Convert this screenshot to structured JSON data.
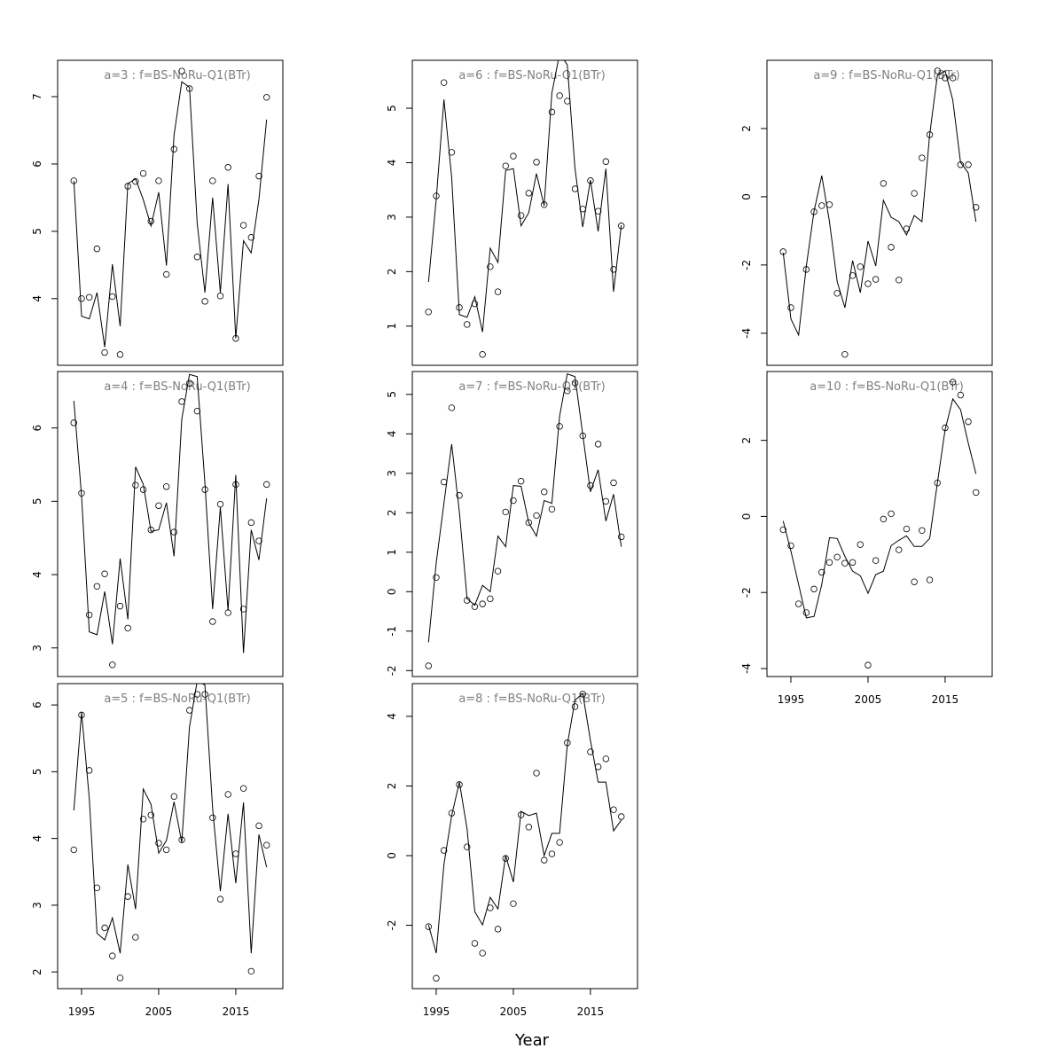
{
  "chart_data": {
    "xlabel": "Year",
    "x": [
      1994,
      1995,
      1996,
      1997,
      1998,
      1999,
      2000,
      2001,
      2002,
      2003,
      2004,
      2005,
      2006,
      2007,
      2008,
      2009,
      2010,
      2011,
      2012,
      2013,
      2014,
      2015,
      2016,
      2017,
      2018,
      2019
    ],
    "xlim": [
      1991.9,
      2021.1
    ],
    "xticks": [
      1995,
      2005,
      2015
    ],
    "panels": [
      {
        "type": "line",
        "title": "a=3  :  f=BS-NoRu-Q1(BTr)",
        "ylim": [
          3.01,
          7.54
        ],
        "yticks": [
          4,
          5,
          6,
          7
        ],
        "points": [
          5.75,
          4.0,
          4.02,
          4.74,
          3.2,
          4.03,
          3.17,
          5.67,
          5.74,
          5.86,
          5.15,
          5.75,
          4.36,
          6.22,
          7.38,
          7.12,
          4.62,
          3.96,
          5.75,
          4.04,
          5.95,
          3.41,
          5.09,
          4.91,
          5.82,
          6.99
        ],
        "line": [
          5.75,
          3.74,
          3.7,
          4.09,
          3.28,
          4.51,
          3.59,
          5.71,
          5.78,
          5.47,
          5.08,
          5.58,
          4.49,
          6.43,
          7.22,
          7.14,
          5.12,
          4.09,
          5.5,
          4.09,
          5.7,
          3.41,
          4.86,
          4.68,
          5.47,
          6.66
        ]
      },
      {
        "type": "line",
        "title": "a=4  :  f=BS-NoRu-Q1(BTr)",
        "ylim": [
          2.61,
          6.77
        ],
        "yticks": [
          3,
          4,
          5,
          6
        ],
        "points": [
          6.07,
          5.11,
          3.45,
          3.84,
          4.01,
          2.77,
          3.57,
          3.27,
          5.22,
          5.16,
          4.61,
          4.94,
          5.2,
          4.58,
          6.36,
          6.61,
          6.23,
          5.16,
          3.36,
          4.96,
          3.48,
          5.23,
          3.53,
          4.71,
          4.46,
          5.23
        ],
        "line": [
          6.37,
          5.07,
          3.22,
          3.18,
          3.77,
          3.05,
          4.22,
          3.39,
          5.47,
          5.23,
          4.59,
          4.61,
          4.98,
          4.25,
          6.12,
          6.73,
          6.7,
          5.25,
          3.53,
          4.92,
          3.51,
          5.36,
          2.93,
          4.61,
          4.2,
          5.04
        ]
      },
      {
        "type": "line",
        "title": "a=5  :  f=BS-NoRu-Q1(BTr)",
        "ylim": [
          1.75,
          6.32
        ],
        "yticks": [
          2,
          3,
          4,
          5,
          6
        ],
        "xaxis": true,
        "points": [
          3.83,
          5.85,
          5.02,
          3.26,
          2.66,
          2.24,
          1.91,
          3.13,
          2.52,
          4.29,
          4.35,
          3.93,
          3.83,
          4.63,
          3.98,
          5.92,
          6.16,
          6.16,
          4.31,
          3.09,
          4.66,
          3.77,
          4.75,
          2.01,
          4.19,
          3.9
        ],
        "line": [
          4.42,
          5.89,
          4.6,
          2.58,
          2.48,
          2.81,
          2.28,
          3.61,
          2.94,
          4.74,
          4.51,
          3.78,
          3.97,
          4.55,
          3.94,
          5.67,
          6.36,
          6.3,
          4.45,
          3.21,
          4.37,
          3.33,
          4.54,
          2.28,
          4.06,
          3.57
        ]
      },
      {
        "type": "line",
        "title": "a=6  :  f=BS-NoRu-Q1(BTr)",
        "ylim": [
          0.28,
          5.88
        ],
        "yticks": [
          1,
          2,
          3,
          4,
          5
        ],
        "points": [
          1.26,
          3.39,
          5.47,
          4.19,
          1.34,
          1.03,
          1.41,
          0.48,
          2.09,
          1.63,
          3.94,
          4.12,
          3.03,
          3.44,
          4.01,
          3.23,
          4.93,
          5.23,
          5.13,
          3.52,
          3.15,
          3.67,
          3.11,
          4.02,
          2.04,
          2.84
        ],
        "line": [
          1.81,
          3.33,
          5.16,
          3.73,
          1.21,
          1.16,
          1.54,
          0.89,
          2.43,
          2.17,
          3.86,
          3.89,
          2.84,
          3.08,
          3.8,
          3.21,
          5.28,
          6.0,
          5.8,
          3.89,
          2.82,
          3.68,
          2.74,
          3.89,
          1.63,
          2.85
        ]
      },
      {
        "type": "line",
        "title": "a=7  :  f=BS-NoRu-Q1(BTr)",
        "ylim": [
          -2.15,
          5.58
        ],
        "yticks": [
          -2,
          -1,
          0,
          1,
          2,
          3,
          4,
          5
        ],
        "points": [
          -1.88,
          0.36,
          2.78,
          4.66,
          2.44,
          -0.22,
          -0.38,
          -0.31,
          -0.18,
          0.52,
          2.02,
          2.31,
          2.8,
          1.75,
          1.93,
          2.53,
          2.09,
          4.19,
          5.09,
          5.29,
          3.95,
          2.69,
          3.74,
          2.29,
          2.76,
          1.39
        ],
        "line": [
          -1.28,
          0.74,
          2.24,
          3.74,
          2.02,
          -0.18,
          -0.34,
          0.16,
          0,
          1.41,
          1.14,
          2.69,
          2.67,
          1.75,
          1.41,
          2.31,
          2.24,
          4.44,
          5.52,
          5.45,
          3.99,
          2.53,
          3.09,
          1.79,
          2.47,
          1.14
        ]
      },
      {
        "type": "line",
        "title": "a=8  :  f=BS-NoRu-Q1(BTr)",
        "ylim": [
          -3.82,
          4.94
        ],
        "yticks": [
          -2,
          0,
          2,
          4
        ],
        "xaxis": true,
        "points": [
          -2.04,
          -3.52,
          0.15,
          1.22,
          2.04,
          0.25,
          -2.52,
          -2.8,
          -1.5,
          -2.11,
          -0.08,
          -1.38,
          1.17,
          0.82,
          2.37,
          -0.13,
          0.05,
          0.38,
          3.24,
          4.28,
          4.64,
          2.98,
          2.55,
          2.78,
          1.32,
          1.12
        ],
        "line": [
          -1.99,
          -2.8,
          -0.25,
          1.15,
          2.11,
          0.76,
          -1.61,
          -1.99,
          -1.2,
          -1.53,
          0,
          -0.76,
          1.27,
          1.15,
          1.22,
          0,
          0.64,
          0.64,
          3.18,
          4.46,
          4.66,
          3.31,
          2.11,
          2.11,
          0.71,
          1.02
        ]
      },
      {
        "type": "line",
        "title": "a=9  :  f=BS-NoRu-Q1(BTr)",
        "ylim": [
          -4.94,
          4.0
        ],
        "yticks": [
          -4,
          -2,
          0,
          2
        ],
        "points": [
          -1.61,
          -3.25,
          null,
          -2.13,
          -0.44,
          -0.26,
          -0.23,
          -2.83,
          -4.62,
          -2.31,
          -2.05,
          -2.55,
          -2.42,
          0.39,
          -1.48,
          -2.44,
          -0.94,
          0.1,
          1.14,
          1.82,
          3.69,
          3.48,
          3.48,
          0.94,
          0.94,
          -0.31
        ],
        "line": [
          -1.64,
          -3.58,
          -4.05,
          -2.03,
          -0.42,
          0.62,
          -0.73,
          -2.49,
          -3.25,
          -1.87,
          -2.81,
          -1.3,
          -2.03,
          -0.1,
          -0.6,
          -0.73,
          -1.12,
          -0.55,
          -0.73,
          1.82,
          3.56,
          3.69,
          2.83,
          1.01,
          0.7,
          -0.73
        ]
      },
      {
        "type": "line",
        "title": "a=10  :  f=BS-NoRu-Q1(BTr)",
        "ylim": [
          -4.21,
          3.81
        ],
        "yticks": [
          -4,
          -2,
          0,
          2
        ],
        "xaxis": true,
        "points": [
          -0.35,
          -0.77,
          -2.3,
          -2.53,
          -1.91,
          -1.47,
          -1.21,
          -1.07,
          -1.23,
          -1.21,
          -0.74,
          -3.91,
          -1.16,
          -0.07,
          0.07,
          -0.88,
          -0.33,
          -1.72,
          -0.37,
          -1.67,
          0.88,
          2.33,
          3.53,
          3.19,
          2.49,
          0.63
        ],
        "line": [
          -0.12,
          -0.91,
          -1.79,
          -2.67,
          -2.63,
          -1.79,
          -0.56,
          -0.58,
          -1.05,
          -1.44,
          -1.56,
          -2.02,
          -1.53,
          -1.44,
          -0.77,
          -0.63,
          -0.51,
          -0.79,
          -0.79,
          -0.58,
          0.88,
          2.28,
          3.09,
          2.81,
          1.93,
          1.12
        ]
      }
    ]
  }
}
